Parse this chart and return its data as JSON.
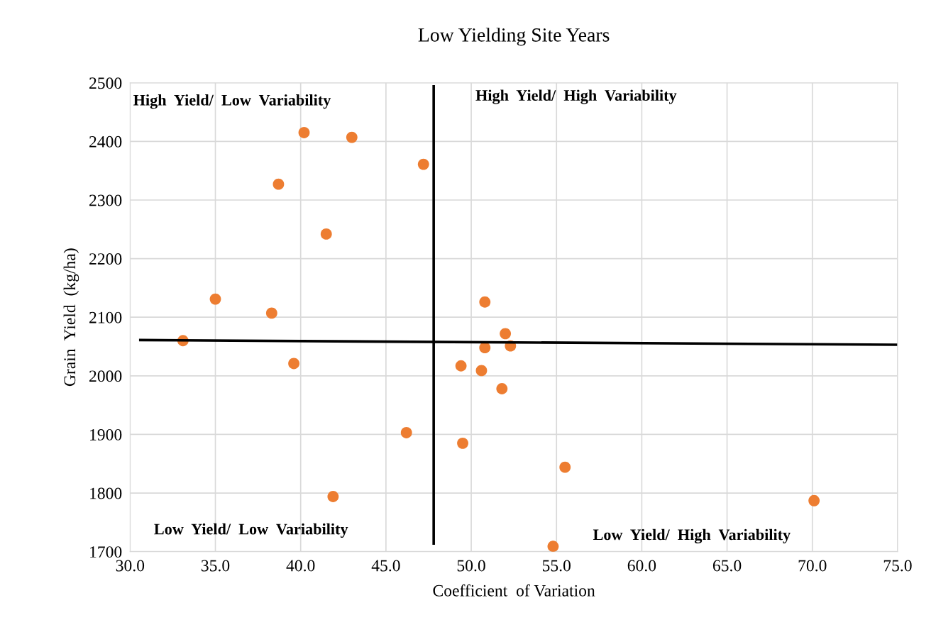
{
  "chart_data": {
    "type": "scatter",
    "title": "Low Yielding Site Years",
    "xlabel": "Coefficient  of Variation",
    "ylabel": "Grain  Yield  (kg/ha)",
    "xlim": [
      30,
      75
    ],
    "xticks": [
      {
        "value": 30,
        "label": "30.0"
      },
      {
        "value": 35,
        "label": "35.0"
      },
      {
        "value": 40,
        "label": "40.0"
      },
      {
        "value": 45,
        "label": "45.0"
      },
      {
        "value": 50,
        "label": "50.0"
      },
      {
        "value": 55,
        "label": "55.0"
      },
      {
        "value": 60,
        "label": "60.0"
      },
      {
        "value": 65,
        "label": "65.0"
      },
      {
        "value": 70,
        "label": "70.0"
      },
      {
        "value": 75,
        "label": "75.0"
      }
    ],
    "ylim": [
      1700,
      2500
    ],
    "yticks": [
      1700,
      1800,
      1900,
      2000,
      2100,
      2200,
      2300,
      2400,
      2500
    ],
    "grid": true,
    "series": [
      {
        "marker": "circle",
        "color": "#ed7d31",
        "x": [
          40.2,
          43.0,
          47.2,
          38.7,
          41.5,
          35.0,
          38.3,
          33.1,
          39.6,
          46.2,
          41.9,
          50.8,
          52.0,
          50.8,
          52.3,
          49.4,
          50.6,
          51.8,
          49.5,
          55.5,
          70.1,
          54.8
        ],
        "values": [
          2415,
          2407,
          2361,
          2327,
          2242,
          2131,
          2107,
          2060,
          2021,
          1903,
          1794,
          2126,
          2072,
          2048,
          2051,
          2017,
          2009,
          1978,
          1885,
          1844,
          1787,
          1709
        ]
      },
      {
        "type": "line",
        "color": "#000000",
        "x": [
          30.6,
          74.9
        ],
        "values": [
          2061,
          2053
        ]
      },
      {
        "type": "line",
        "color": "#000000",
        "x": [
          47.8,
          47.8
        ],
        "values": [
          2494,
          1714
        ]
      }
    ],
    "annotations": [
      "High  Yield/  Low  Variability",
      "High  Yield/  High  Variability",
      "Low  Yield/  Low  Variability",
      "Low  Yield/  High  Variability"
    ]
  }
}
